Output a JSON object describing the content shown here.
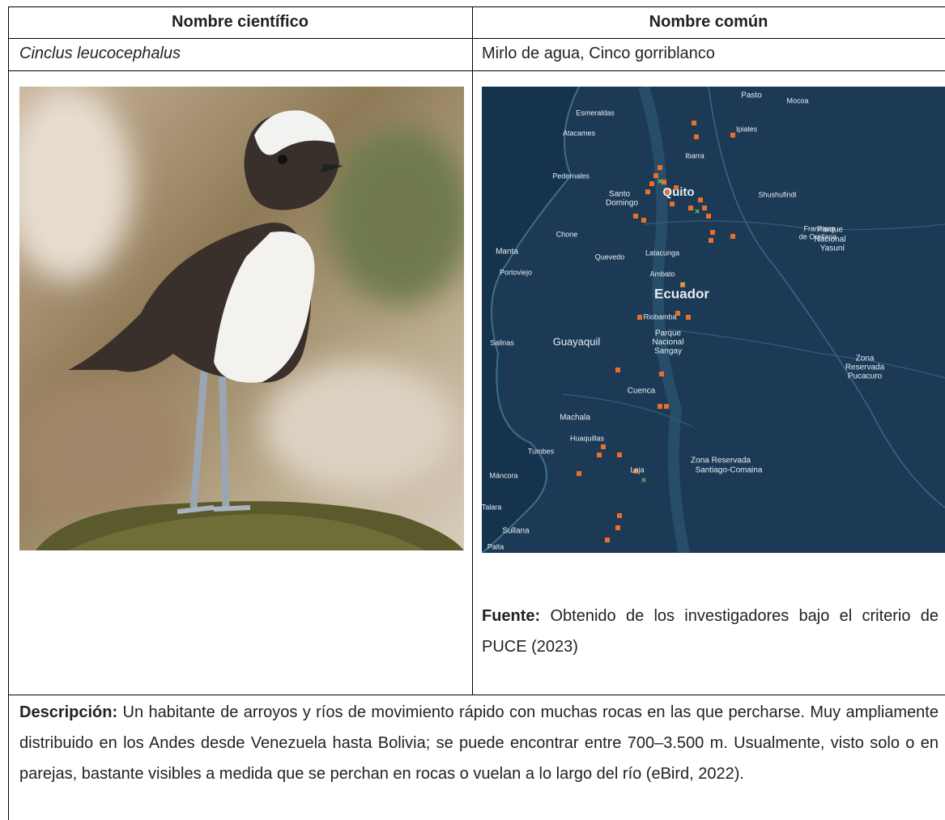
{
  "table": {
    "header": [
      "Nombre científico",
      "Nombre común"
    ],
    "rows": [
      [
        "Cinclus leucocephalus",
        "Mirlo de agua, Cinco gorriblanco"
      ]
    ],
    "source": {
      "label": "Fuente:",
      "text": "Obtenido de los investigadores bajo el criterio de PUCE (2023)"
    },
    "description": {
      "label": "Descripción:",
      "text": "Un habitante de arroyos y ríos de movimiento rápido con muchas rocas en las que percharse. Muy ampliamente distribuido en los Andes desde Venezuela hasta Bolivia; se puede encontrar entre 700–3.500 m. Usualmente, visto solo o en parejas, bastante visibles a medida que se perchan en rocas o vuelan a lo largo del río (eBird, 2022)."
    }
  },
  "map": {
    "labels": [
      "Esmeraldas",
      "Atacames",
      "Pasto",
      "Mocoa",
      "Ipiales",
      "Ibarra",
      "Pedernales",
      "Santo",
      "Domingo",
      "Quito",
      "Shushufindi",
      "Francisco",
      "de Orellana",
      "Parque",
      "Nacional",
      "Yasuní",
      "Chone",
      "Manta",
      "Quevedo",
      "Latacunga",
      "Portoviejo",
      "Ambato",
      "Ecuador",
      "Riobamba",
      "Parque",
      "Nacional",
      "Sangay",
      "Salinas",
      "Guayaquil",
      "Zona",
      "Reservada",
      "Pucacuro",
      "Cuenca",
      "Machala",
      "Huaquillas",
      "Tumbes",
      "Zona Reservada",
      "Santiago-Comaina",
      "Loja",
      "Máncora",
      "Talara",
      "Sullana",
      "Paita"
    ]
  }
}
